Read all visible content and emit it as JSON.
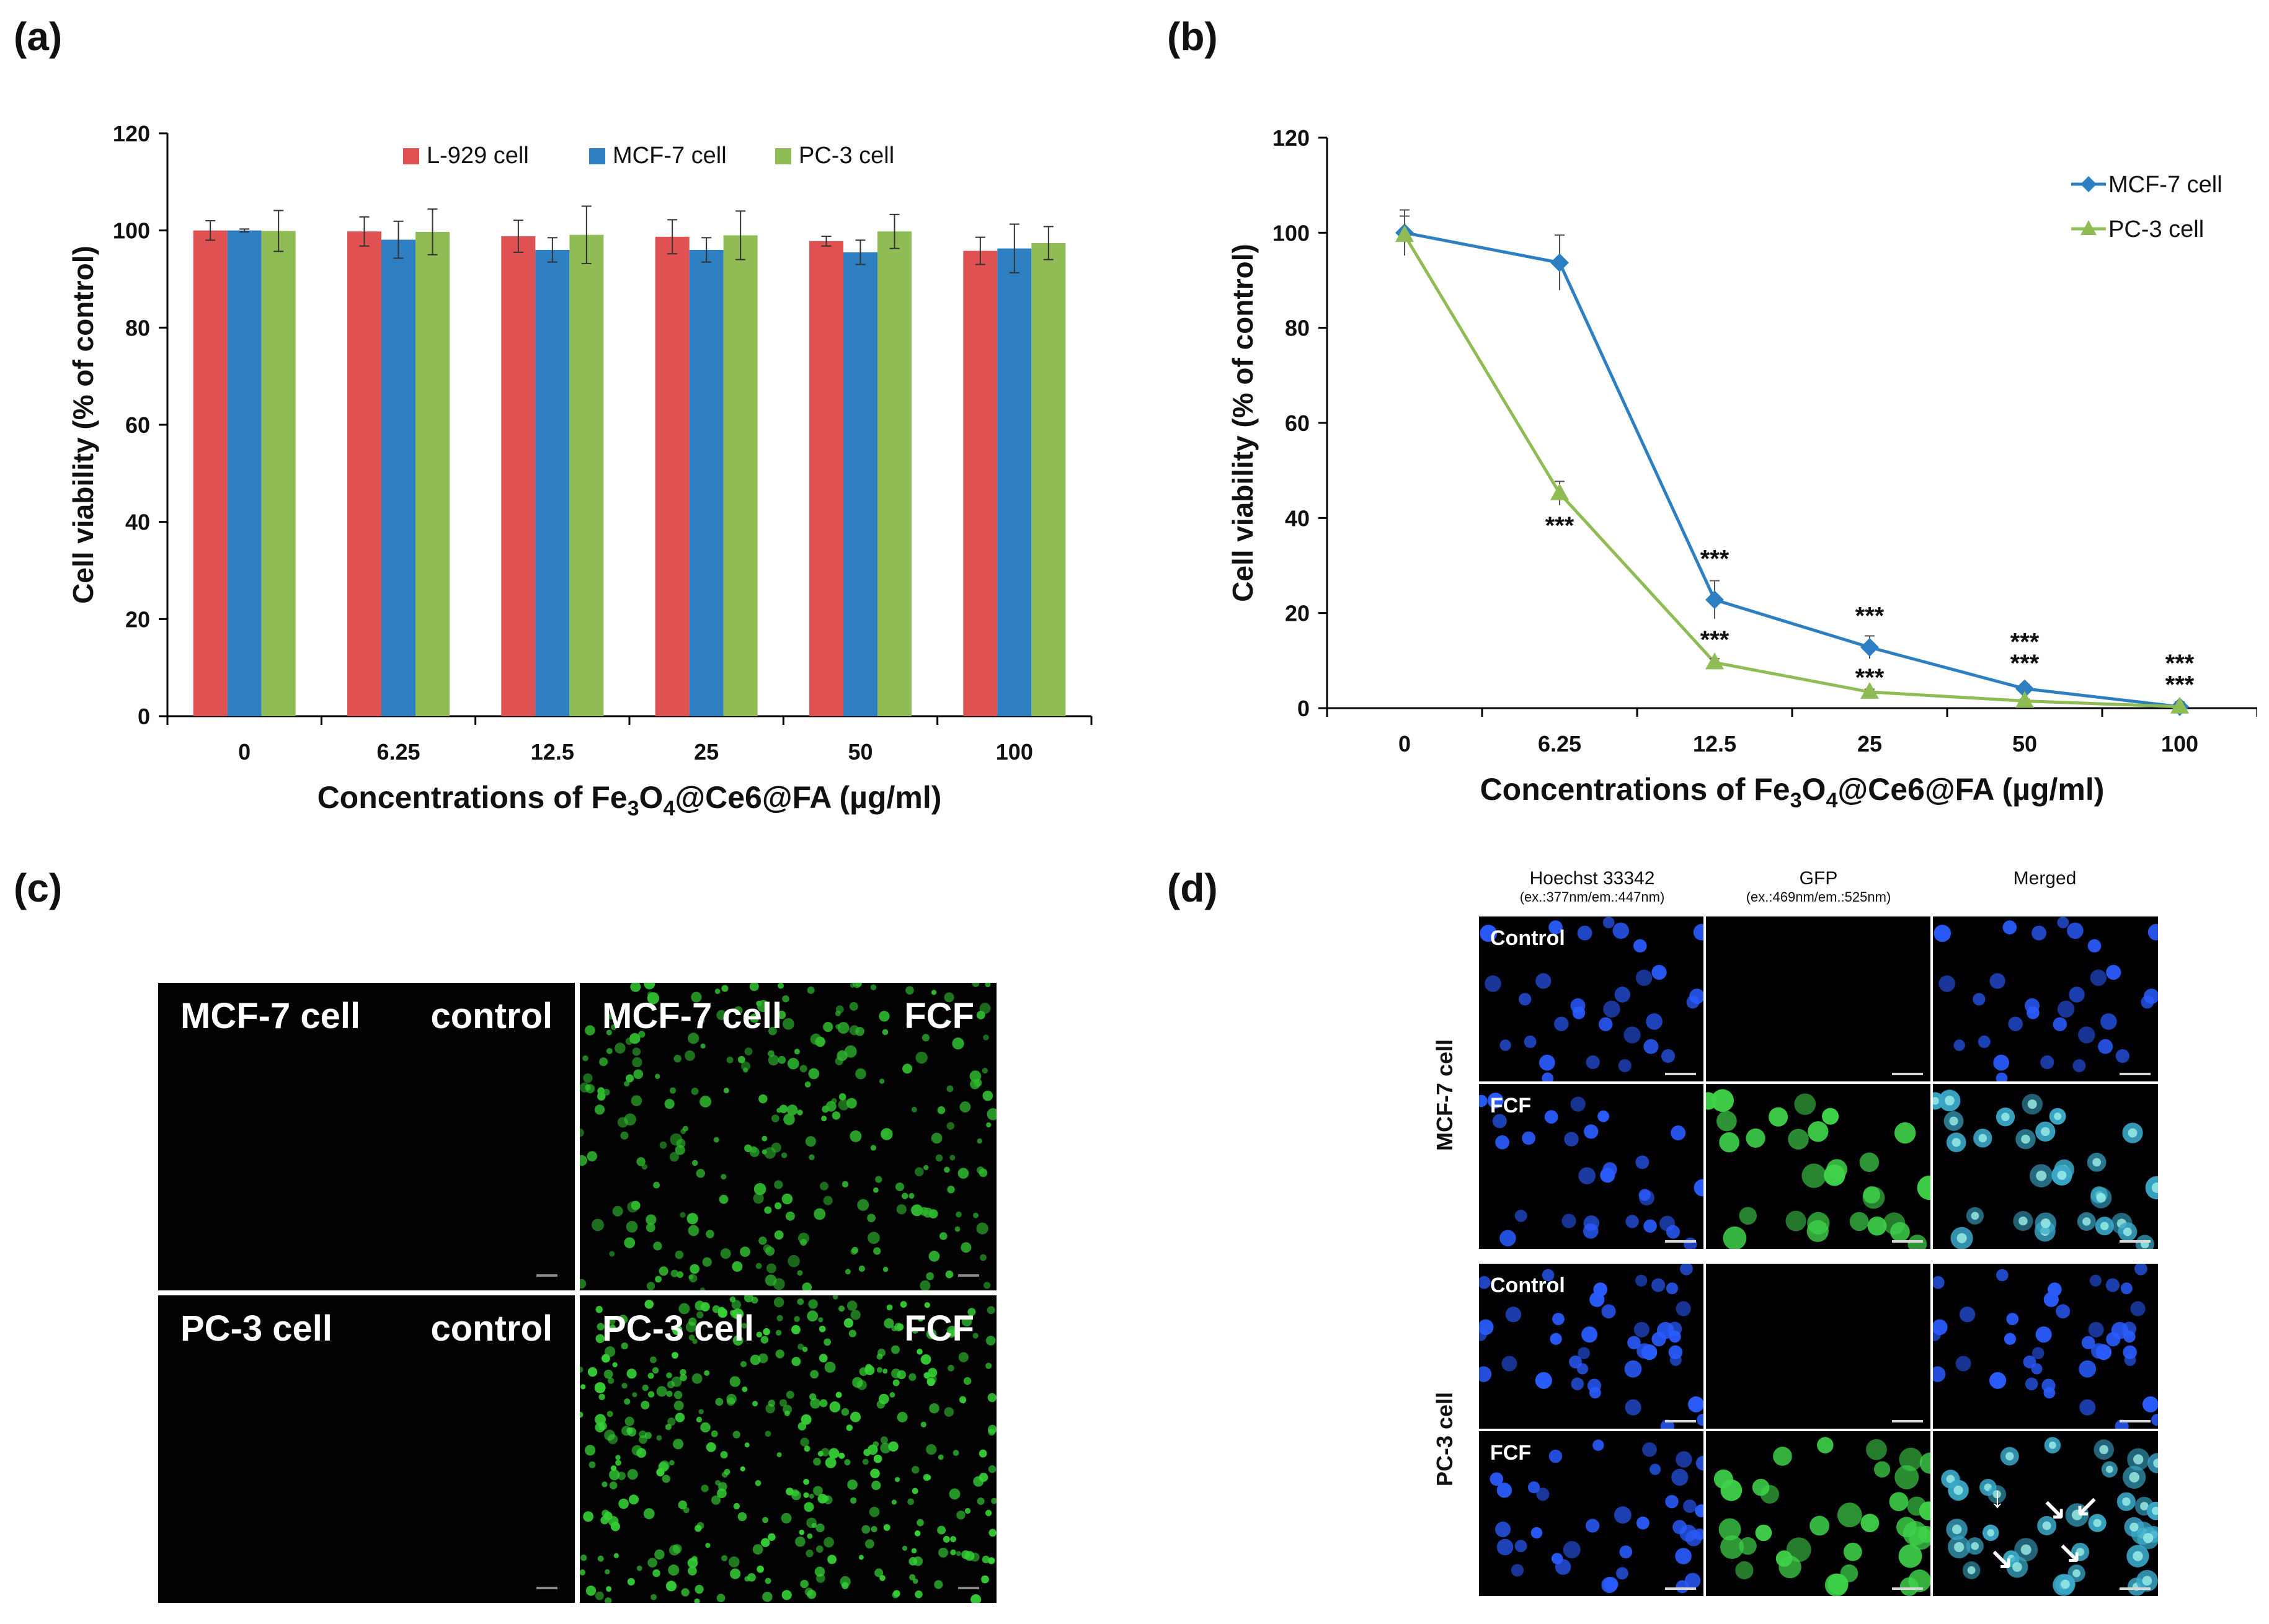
{
  "panels": {
    "a": "(a)",
    "b": "(b)",
    "c": "(c)",
    "d": "(d)"
  },
  "chart_data": [
    {
      "id": "a",
      "type": "bar",
      "categories": [
        "0",
        "6.25",
        "12.5",
        "25",
        "50",
        "100"
      ],
      "series": [
        {
          "name": "L-929 cell",
          "color": "#e05252",
          "values": [
            100,
            99.8,
            98.8,
            98.7,
            97.8,
            95.8
          ],
          "errors": [
            2.0,
            3.0,
            3.3,
            3.5,
            1.0,
            2.8
          ]
        },
        {
          "name": "MCF-7 cell",
          "color": "#2e7fc1",
          "values": [
            100,
            98.1,
            96.0,
            96.0,
            95.5,
            96.3
          ],
          "errors": [
            0.3,
            3.8,
            2.5,
            2.5,
            2.5,
            5.0
          ]
        },
        {
          "name": "PC-3 cell",
          "color": "#8fbc55",
          "values": [
            99.9,
            99.7,
            99.1,
            99.0,
            99.8,
            97.4
          ],
          "errors": [
            4.2,
            4.7,
            5.9,
            5.0,
            3.5,
            3.4
          ]
        }
      ],
      "ylabel": "Cell viability (% of control)",
      "xlabel_parts": [
        "Concentrations of Fe",
        "3",
        "O",
        "4",
        "@Ce6@FA (µg/ml)"
      ],
      "ylim": [
        0,
        120
      ],
      "yticks": [
        "0",
        "20",
        "40",
        "60",
        "80",
        "100",
        "120"
      ],
      "legend": "top-center"
    },
    {
      "id": "b",
      "type": "line",
      "categories": [
        "0",
        "6.25",
        "12.5",
        "25",
        "50",
        "100"
      ],
      "series": [
        {
          "name": "MCF-7 cell",
          "color": "#2e7fc1",
          "marker": "diamond",
          "values": [
            100,
            93.7,
            22.8,
            12.8,
            4.1,
            0.3
          ],
          "errors": [
            4.8,
            5.8,
            4.0,
            2.4,
            0.9,
            1.0
          ]
        },
        {
          "name": "PC-3 cell",
          "color": "#8fbc55",
          "marker": "triangle",
          "values": [
            99.5,
            45.2,
            9.6,
            3.4,
            1.5,
            0.3
          ],
          "errors": [
            4.0,
            2.5,
            0.8,
            0.6,
            0.4,
            0.4
          ]
        }
      ],
      "annotations": [
        {
          "category": "6.25",
          "value": 38.5,
          "text": "***"
        },
        {
          "category": "12.5",
          "value": 31.5,
          "text": "***"
        },
        {
          "category": "12.5",
          "value": 14.5,
          "text": "***"
        },
        {
          "category": "25",
          "value": 19.5,
          "text": "***"
        },
        {
          "category": "25",
          "value": 6.5,
          "text": "***"
        },
        {
          "category": "50",
          "value": 14.0,
          "text": "***"
        },
        {
          "category": "50",
          "value": 9.5,
          "text": "***"
        },
        {
          "category": "100",
          "value": 9.5,
          "text": "***"
        },
        {
          "category": "100",
          "value": 5.0,
          "text": "***"
        }
      ],
      "ylabel": "Cell viability (% of control)",
      "xlabel_parts": [
        "Concentrations of Fe",
        "3",
        "O",
        "4",
        "@Ce6@FA (µg/ml)"
      ],
      "ylim": [
        0,
        120
      ],
      "yticks": [
        "0",
        "20",
        "40",
        "60",
        "80",
        "100",
        "120"
      ],
      "legend": "top-right"
    }
  ],
  "panel_c": {
    "images": [
      {
        "cell": "MCF-7 cell",
        "condition": "control",
        "fluorescence": "none"
      },
      {
        "cell": "MCF-7 cell",
        "condition": "FCF",
        "fluorescence": "green"
      },
      {
        "cell": "PC-3 cell",
        "condition": "control",
        "fluorescence": "none"
      },
      {
        "cell": "PC-3 cell",
        "condition": "FCF",
        "fluorescence": "green"
      }
    ]
  },
  "panel_d": {
    "columns": [
      {
        "title": "Hoechst 33342",
        "sub": "(ex.:377nm/em.:447nm)"
      },
      {
        "title": "GFP",
        "sub": "(ex.:469nm/em.:525nm)"
      },
      {
        "title": "Merged",
        "sub": ""
      }
    ],
    "groups": [
      {
        "row_label": "MCF-7 cell",
        "rows": [
          "Control",
          "FCF"
        ]
      },
      {
        "row_label": "PC-3 cell",
        "rows": [
          "Control",
          "FCF"
        ]
      }
    ],
    "colors": {
      "hoechst": "#2a5cff",
      "gfp": "#3fd24a",
      "merged": "#3aa8c8"
    }
  }
}
